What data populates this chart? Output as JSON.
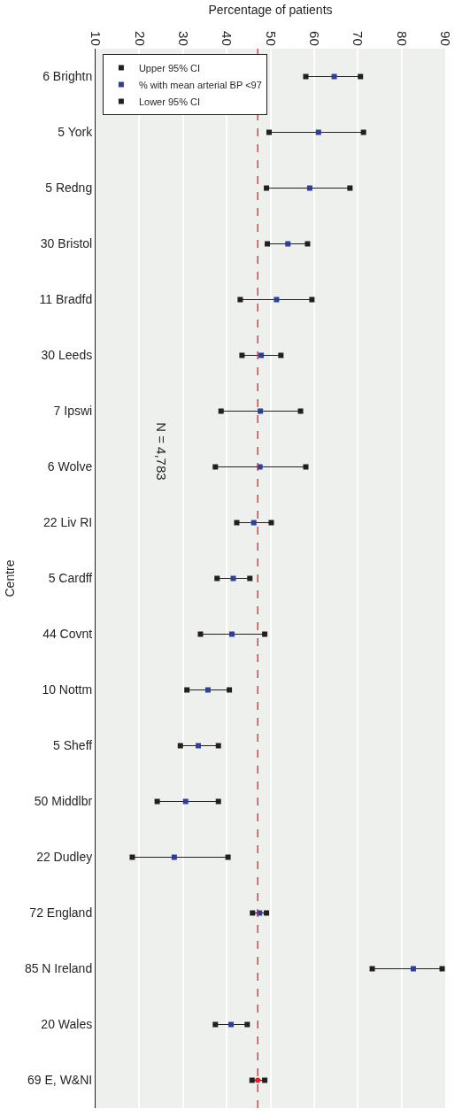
{
  "chart_data": {
    "type": "scatter",
    "xlabel": "Percentage of patients",
    "ylabel": "Centre",
    "orientation": "horizontal",
    "categories": [
      "6 Brightn",
      "5 York",
      "5 Redng",
      "30 Bristol",
      "11 Bradfd",
      "30 Leeds",
      "7 Ipswi",
      "6 Wolve",
      "22 Liv RI",
      "5 Cardff",
      "44 Covnt",
      "10 Nottm",
      "5 Sheff",
      "50 Middlbr",
      "22 Dudley",
      "72 England",
      "85 N Ireland",
      "20 Wales",
      "69 E, W&NI"
    ],
    "series": [
      {
        "name": "Upper 95% CI",
        "color": "#231f20",
        "marker": "square",
        "values": [
          70.6,
          71.3,
          68.2,
          58.5,
          59.5,
          52.4,
          56.9,
          58.1,
          50.2,
          45.3,
          48.7,
          40.6,
          38.1,
          38.1,
          40.3,
          49.1,
          89.3,
          44.7,
          48.7
        ]
      },
      {
        "name": "% with mean arterial BP <97",
        "color": "#2e3f9a",
        "marker": "square",
        "values": [
          64.6,
          61.0,
          59.0,
          54.0,
          51.4,
          47.9,
          47.7,
          47.6,
          46.2,
          41.5,
          41.2,
          35.7,
          33.5,
          30.6,
          28.0,
          47.5,
          82.7,
          null,
          null
        ]
      },
      {
        "color": "#2e3f9a",
        "marker": "square",
        "values": [
          null,
          null,
          null,
          null,
          null,
          null,
          null,
          null,
          null,
          null,
          null,
          null,
          null,
          null,
          null,
          null,
          null,
          41.0,
          null
        ]
      },
      {
        "color": "#ed1c24",
        "marker": "circle",
        "values": [
          null,
          null,
          null,
          null,
          null,
          null,
          null,
          null,
          null,
          null,
          null,
          null,
          null,
          null,
          null,
          null,
          null,
          null,
          47.1
        ]
      },
      {
        "name": "Lower 95% CI",
        "color": "#231f20",
        "marker": "square",
        "values": [
          58.1,
          49.7,
          49.1,
          49.3,
          43.1,
          43.5,
          38.7,
          37.4,
          42.3,
          37.8,
          34.0,
          30.9,
          29.4,
          24.1,
          18.4,
          45.9,
          73.3,
          37.4,
          45.8
        ]
      }
    ],
    "xlim": [
      10,
      90
    ],
    "xticks": [
      10,
      20,
      30,
      40,
      50,
      60,
      70,
      80,
      90
    ],
    "ref_lines": [
      {
        "axis": "x",
        "value": 47.1,
        "color": "#ed1c24",
        "line_style": "dashed"
      }
    ],
    "annotations": [
      "N = 4,783"
    ],
    "grid": "x",
    "legend": "top left"
  }
}
